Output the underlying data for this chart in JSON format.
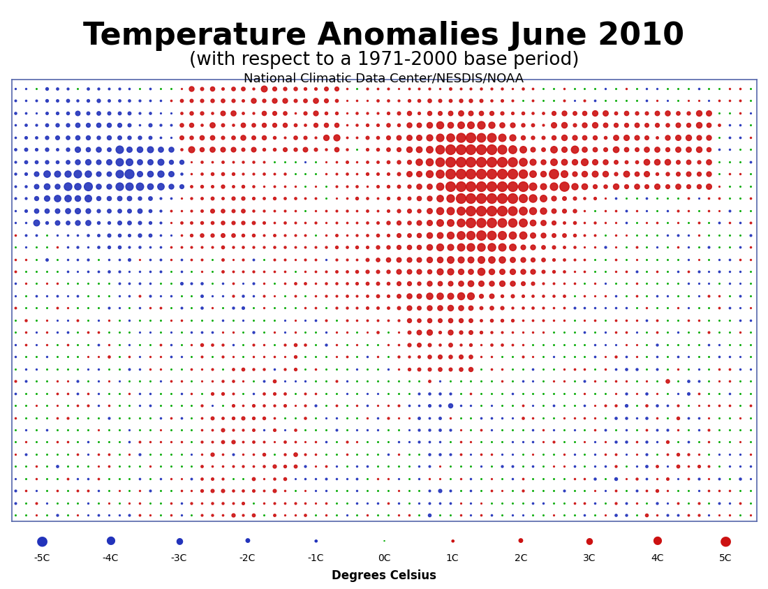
{
  "title": "Temperature Anomalies June 2010",
  "subtitle": "(with respect to a 1971-2000 base period)",
  "source": "National Climatic Data Center/NESDIS/NOAA",
  "xlabel": "Degrees Celsius",
  "title_fontsize": 32,
  "subtitle_fontsize": 19,
  "source_fontsize": 13,
  "blue_color": "#2233BB",
  "red_color": "#CC1111",
  "green_color": "#00AA00",
  "legend_values": [
    -5,
    -4,
    -3,
    -2,
    -1,
    0,
    1,
    2,
    3,
    4,
    5
  ],
  "legend_labels": [
    "-5C",
    "-4C",
    "-3C",
    "-2C",
    "-1C",
    "0C",
    "1C",
    "2C",
    "3C",
    "4C",
    "5C"
  ]
}
